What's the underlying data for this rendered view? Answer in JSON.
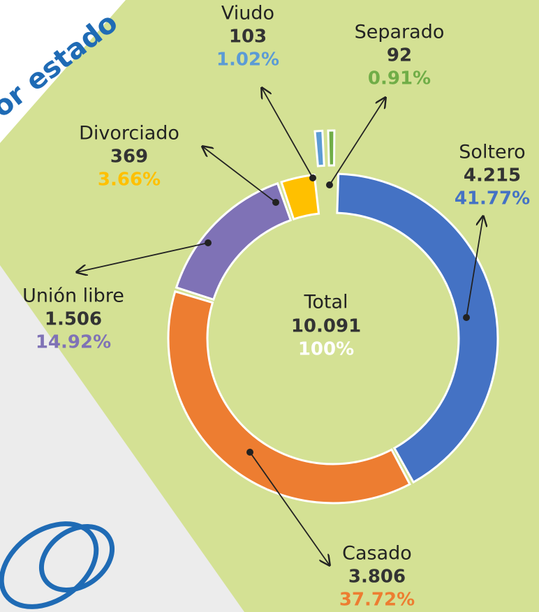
{
  "chart_data": {
    "type": "donut",
    "title": "or estado",
    "categories": [
      "Soltero",
      "Casado",
      "Unión libre",
      "Divorciado",
      "Viudo",
      "Separado"
    ],
    "values": [
      4215,
      3806,
      1506,
      369,
      103,
      92
    ],
    "value_labels": [
      "4.215",
      "3.806",
      "1.506",
      "369",
      "103",
      "92"
    ],
    "percentages": [
      41.77,
      37.72,
      14.92,
      3.66,
      1.02,
      0.91
    ],
    "percentage_labels": [
      "41.77%",
      "37.72%",
      "14.92%",
      "3.66%",
      "1.02%",
      "0.91%"
    ],
    "colors": [
      "#4472c4",
      "#ed7d31",
      "#7f72b6",
      "#ffc000",
      "#5b9bd5",
      "#70ad47"
    ],
    "total_label": "Total",
    "total": 10091,
    "total_value_label": "10.091",
    "total_percentage": 100,
    "total_percentage_label": "100%"
  }
}
